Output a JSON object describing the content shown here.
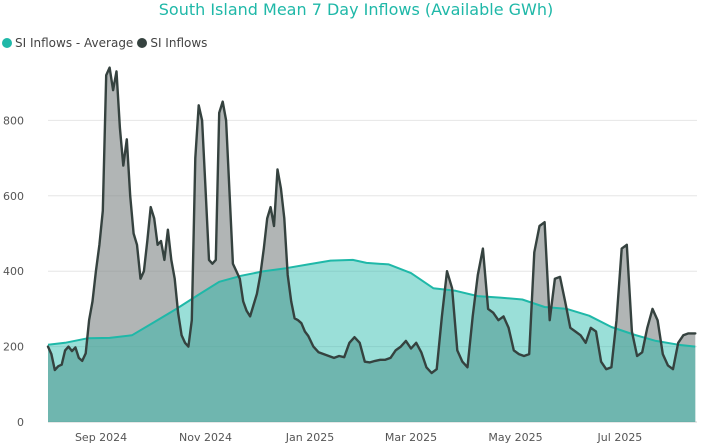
{
  "colors": {
    "average": "#1fb8a8",
    "inflows": "#35423f",
    "title": "#1fb8a8"
  },
  "chart_data": {
    "type": "area",
    "title": "South Island Mean 7 Day Inflows (Available GWh)",
    "xlabel": "",
    "ylabel": "",
    "grid": true,
    "legend_position": "top-left",
    "xlim": [
      "2024-08-01",
      "2025-08-15"
    ],
    "ylim": [
      0,
      1000
    ],
    "y_ticks": [
      0,
      200,
      400,
      600,
      800
    ],
    "x_ticks": [
      {
        "date": "2024-09-01",
        "label": "Sep 2024"
      },
      {
        "date": "2024-11-01",
        "label": "Nov 2024"
      },
      {
        "date": "2025-01-01",
        "label": "Jan 2025"
      },
      {
        "date": "2025-03-01",
        "label": "Mar 2025"
      },
      {
        "date": "2025-05-01",
        "label": "May 2025"
      },
      {
        "date": "2025-07-01",
        "label": "Jul 2025"
      }
    ],
    "series": [
      {
        "name": "SI Inflows - Average",
        "color": "#1fb8a8",
        "points": [
          [
            "2024-08-01",
            205
          ],
          [
            "2024-08-11",
            210
          ],
          [
            "2024-08-24",
            222
          ],
          [
            "2024-09-06",
            223
          ],
          [
            "2024-09-19",
            230
          ],
          [
            "2024-10-02",
            265
          ],
          [
            "2024-10-15",
            300
          ],
          [
            "2024-10-28",
            338
          ],
          [
            "2024-11-09",
            372
          ],
          [
            "2024-11-22",
            388
          ],
          [
            "2024-12-05",
            400
          ],
          [
            "2024-12-18",
            408
          ],
          [
            "2024-12-31",
            418
          ],
          [
            "2025-01-13",
            428
          ],
          [
            "2025-01-26",
            430
          ],
          [
            "2025-02-03",
            422
          ],
          [
            "2025-02-16",
            418
          ],
          [
            "2025-03-01",
            395
          ],
          [
            "2025-03-14",
            355
          ],
          [
            "2025-03-27",
            348
          ],
          [
            "2025-04-09",
            334
          ],
          [
            "2025-04-22",
            330
          ],
          [
            "2025-05-05",
            325
          ],
          [
            "2025-05-18",
            305
          ],
          [
            "2025-05-31",
            300
          ],
          [
            "2025-06-13",
            282
          ],
          [
            "2025-06-26",
            252
          ],
          [
            "2025-07-09",
            232
          ],
          [
            "2025-07-22",
            215
          ],
          [
            "2025-08-04",
            205
          ],
          [
            "2025-08-14",
            200
          ]
        ]
      },
      {
        "name": "SI Inflows",
        "color": "#35423f",
        "points": [
          [
            "2024-08-01",
            200
          ],
          [
            "2024-08-03",
            180
          ],
          [
            "2024-08-05",
            138
          ],
          [
            "2024-08-07",
            148
          ],
          [
            "2024-08-09",
            152
          ],
          [
            "2024-08-11",
            190
          ],
          [
            "2024-08-13",
            200
          ],
          [
            "2024-08-15",
            188
          ],
          [
            "2024-08-17",
            198
          ],
          [
            "2024-08-19",
            170
          ],
          [
            "2024-08-21",
            162
          ],
          [
            "2024-08-23",
            182
          ],
          [
            "2024-08-25",
            270
          ],
          [
            "2024-08-27",
            320
          ],
          [
            "2024-08-29",
            400
          ],
          [
            "2024-08-31",
            470
          ],
          [
            "2024-09-02",
            560
          ],
          [
            "2024-09-04",
            920
          ],
          [
            "2024-09-06",
            940
          ],
          [
            "2024-09-08",
            880
          ],
          [
            "2024-09-10",
            930
          ],
          [
            "2024-09-12",
            780
          ],
          [
            "2024-09-14",
            680
          ],
          [
            "2024-09-16",
            750
          ],
          [
            "2024-09-18",
            600
          ],
          [
            "2024-09-20",
            500
          ],
          [
            "2024-09-22",
            470
          ],
          [
            "2024-09-24",
            380
          ],
          [
            "2024-09-26",
            400
          ],
          [
            "2024-09-28",
            480
          ],
          [
            "2024-09-30",
            570
          ],
          [
            "2024-10-02",
            540
          ],
          [
            "2024-10-04",
            470
          ],
          [
            "2024-10-06",
            480
          ],
          [
            "2024-10-08",
            430
          ],
          [
            "2024-10-10",
            510
          ],
          [
            "2024-10-12",
            430
          ],
          [
            "2024-10-14",
            380
          ],
          [
            "2024-10-16",
            290
          ],
          [
            "2024-10-18",
            230
          ],
          [
            "2024-10-20",
            210
          ],
          [
            "2024-10-22",
            200
          ],
          [
            "2024-10-24",
            270
          ],
          [
            "2024-10-26",
            700
          ],
          [
            "2024-10-28",
            840
          ],
          [
            "2024-10-30",
            800
          ],
          [
            "2024-11-01",
            620
          ],
          [
            "2024-11-03",
            430
          ],
          [
            "2024-11-05",
            420
          ],
          [
            "2024-11-07",
            430
          ],
          [
            "2024-11-09",
            820
          ],
          [
            "2024-11-11",
            850
          ],
          [
            "2024-11-13",
            800
          ],
          [
            "2024-11-15",
            610
          ],
          [
            "2024-11-17",
            420
          ],
          [
            "2024-11-19",
            400
          ],
          [
            "2024-11-21",
            380
          ],
          [
            "2024-11-23",
            320
          ],
          [
            "2024-11-25",
            295
          ],
          [
            "2024-11-27",
            280
          ],
          [
            "2024-11-29",
            310
          ],
          [
            "2024-12-01",
            340
          ],
          [
            "2024-12-03",
            390
          ],
          [
            "2024-12-05",
            460
          ],
          [
            "2024-12-07",
            540
          ],
          [
            "2024-12-09",
            570
          ],
          [
            "2024-12-11",
            520
          ],
          [
            "2024-12-13",
            670
          ],
          [
            "2024-12-15",
            620
          ],
          [
            "2024-12-17",
            540
          ],
          [
            "2024-12-19",
            390
          ],
          [
            "2024-12-21",
            320
          ],
          [
            "2024-12-23",
            275
          ],
          [
            "2024-12-25",
            270
          ],
          [
            "2024-12-27",
            262
          ],
          [
            "2024-12-29",
            240
          ],
          [
            "2024-12-31",
            228
          ],
          [
            "2025-01-03",
            200
          ],
          [
            "2025-01-06",
            185
          ],
          [
            "2025-01-09",
            180
          ],
          [
            "2025-01-12",
            175
          ],
          [
            "2025-01-15",
            170
          ],
          [
            "2025-01-18",
            175
          ],
          [
            "2025-01-21",
            172
          ],
          [
            "2025-01-24",
            210
          ],
          [
            "2025-01-27",
            225
          ],
          [
            "2025-01-30",
            210
          ],
          [
            "2025-02-02",
            160
          ],
          [
            "2025-02-05",
            158
          ],
          [
            "2025-02-08",
            162
          ],
          [
            "2025-02-11",
            165
          ],
          [
            "2025-02-14",
            165
          ],
          [
            "2025-02-17",
            170
          ],
          [
            "2025-02-20",
            190
          ],
          [
            "2025-02-23",
            200
          ],
          [
            "2025-02-26",
            215
          ],
          [
            "2025-03-01",
            195
          ],
          [
            "2025-03-04",
            210
          ],
          [
            "2025-03-07",
            185
          ],
          [
            "2025-03-10",
            145
          ],
          [
            "2025-03-13",
            130
          ],
          [
            "2025-03-16",
            140
          ],
          [
            "2025-03-19",
            280
          ],
          [
            "2025-03-22",
            400
          ],
          [
            "2025-03-25",
            355
          ],
          [
            "2025-03-28",
            190
          ],
          [
            "2025-03-31",
            160
          ],
          [
            "2025-04-03",
            145
          ],
          [
            "2025-04-06",
            280
          ],
          [
            "2025-04-09",
            390
          ],
          [
            "2025-04-12",
            460
          ],
          [
            "2025-04-15",
            300
          ],
          [
            "2025-04-18",
            290
          ],
          [
            "2025-04-21",
            270
          ],
          [
            "2025-04-24",
            280
          ],
          [
            "2025-04-27",
            250
          ],
          [
            "2025-04-30",
            190
          ],
          [
            "2025-05-03",
            180
          ],
          [
            "2025-05-06",
            175
          ],
          [
            "2025-05-09",
            180
          ],
          [
            "2025-05-12",
            450
          ],
          [
            "2025-05-15",
            520
          ],
          [
            "2025-05-18",
            530
          ],
          [
            "2025-05-21",
            270
          ],
          [
            "2025-05-24",
            380
          ],
          [
            "2025-05-27",
            385
          ],
          [
            "2025-05-30",
            320
          ],
          [
            "2025-06-02",
            250
          ],
          [
            "2025-06-05",
            240
          ],
          [
            "2025-06-08",
            230
          ],
          [
            "2025-06-11",
            210
          ],
          [
            "2025-06-14",
            250
          ],
          [
            "2025-06-17",
            240
          ],
          [
            "2025-06-20",
            160
          ],
          [
            "2025-06-23",
            140
          ],
          [
            "2025-06-26",
            145
          ],
          [
            "2025-06-29",
            270
          ],
          [
            "2025-07-02",
            460
          ],
          [
            "2025-07-05",
            470
          ],
          [
            "2025-07-08",
            240
          ],
          [
            "2025-07-11",
            175
          ],
          [
            "2025-07-14",
            185
          ],
          [
            "2025-07-17",
            250
          ],
          [
            "2025-07-20",
            300
          ],
          [
            "2025-07-23",
            270
          ],
          [
            "2025-07-26",
            180
          ],
          [
            "2025-07-29",
            150
          ],
          [
            "2025-08-01",
            140
          ],
          [
            "2025-08-04",
            210
          ],
          [
            "2025-08-07",
            230
          ],
          [
            "2025-08-10",
            235
          ],
          [
            "2025-08-14",
            235
          ]
        ]
      }
    ]
  }
}
